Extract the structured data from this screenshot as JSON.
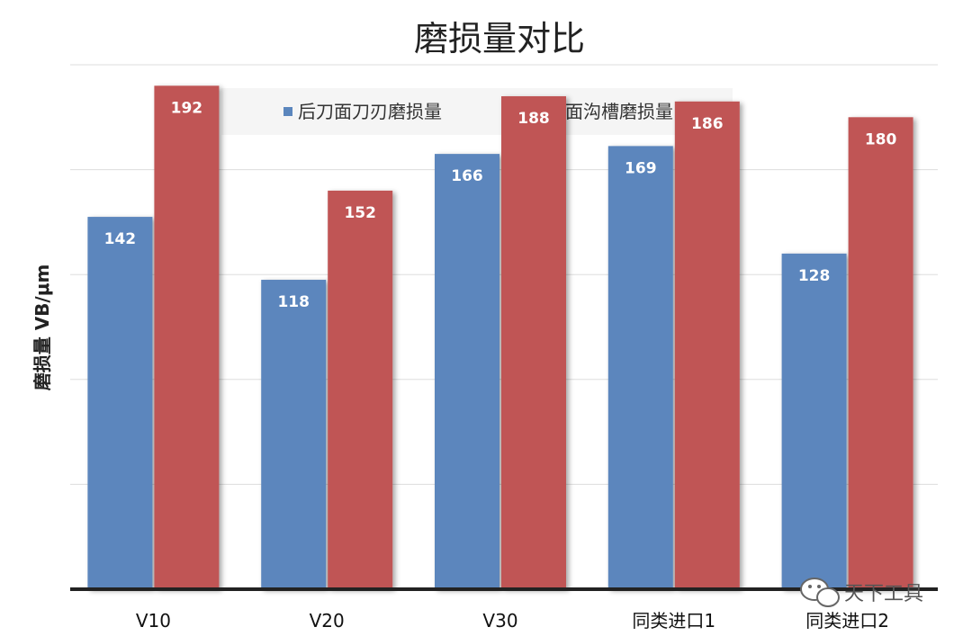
{
  "chart_data": {
    "type": "bar",
    "title": "磨损量对比",
    "ylabel": "磨损量 VB/μm",
    "xlabel": "",
    "categories": [
      "V10",
      "V20",
      "V30",
      "同类进口1",
      "同类进口2"
    ],
    "series": [
      {
        "name": "后刀面刀刃磨损量",
        "values": [
          142,
          118,
          166,
          169,
          128
        ],
        "color": "#5b86bd"
      },
      {
        "name": "后刀面沟槽磨损量",
        "values": [
          192,
          152,
          188,
          186,
          180
        ],
        "color": "#c05555"
      }
    ],
    "ylim": [
      0,
      200
    ],
    "grid": true,
    "legend_position": "top"
  },
  "watermark": {
    "text": "天下工具",
    "icon": "wechat-icon"
  }
}
